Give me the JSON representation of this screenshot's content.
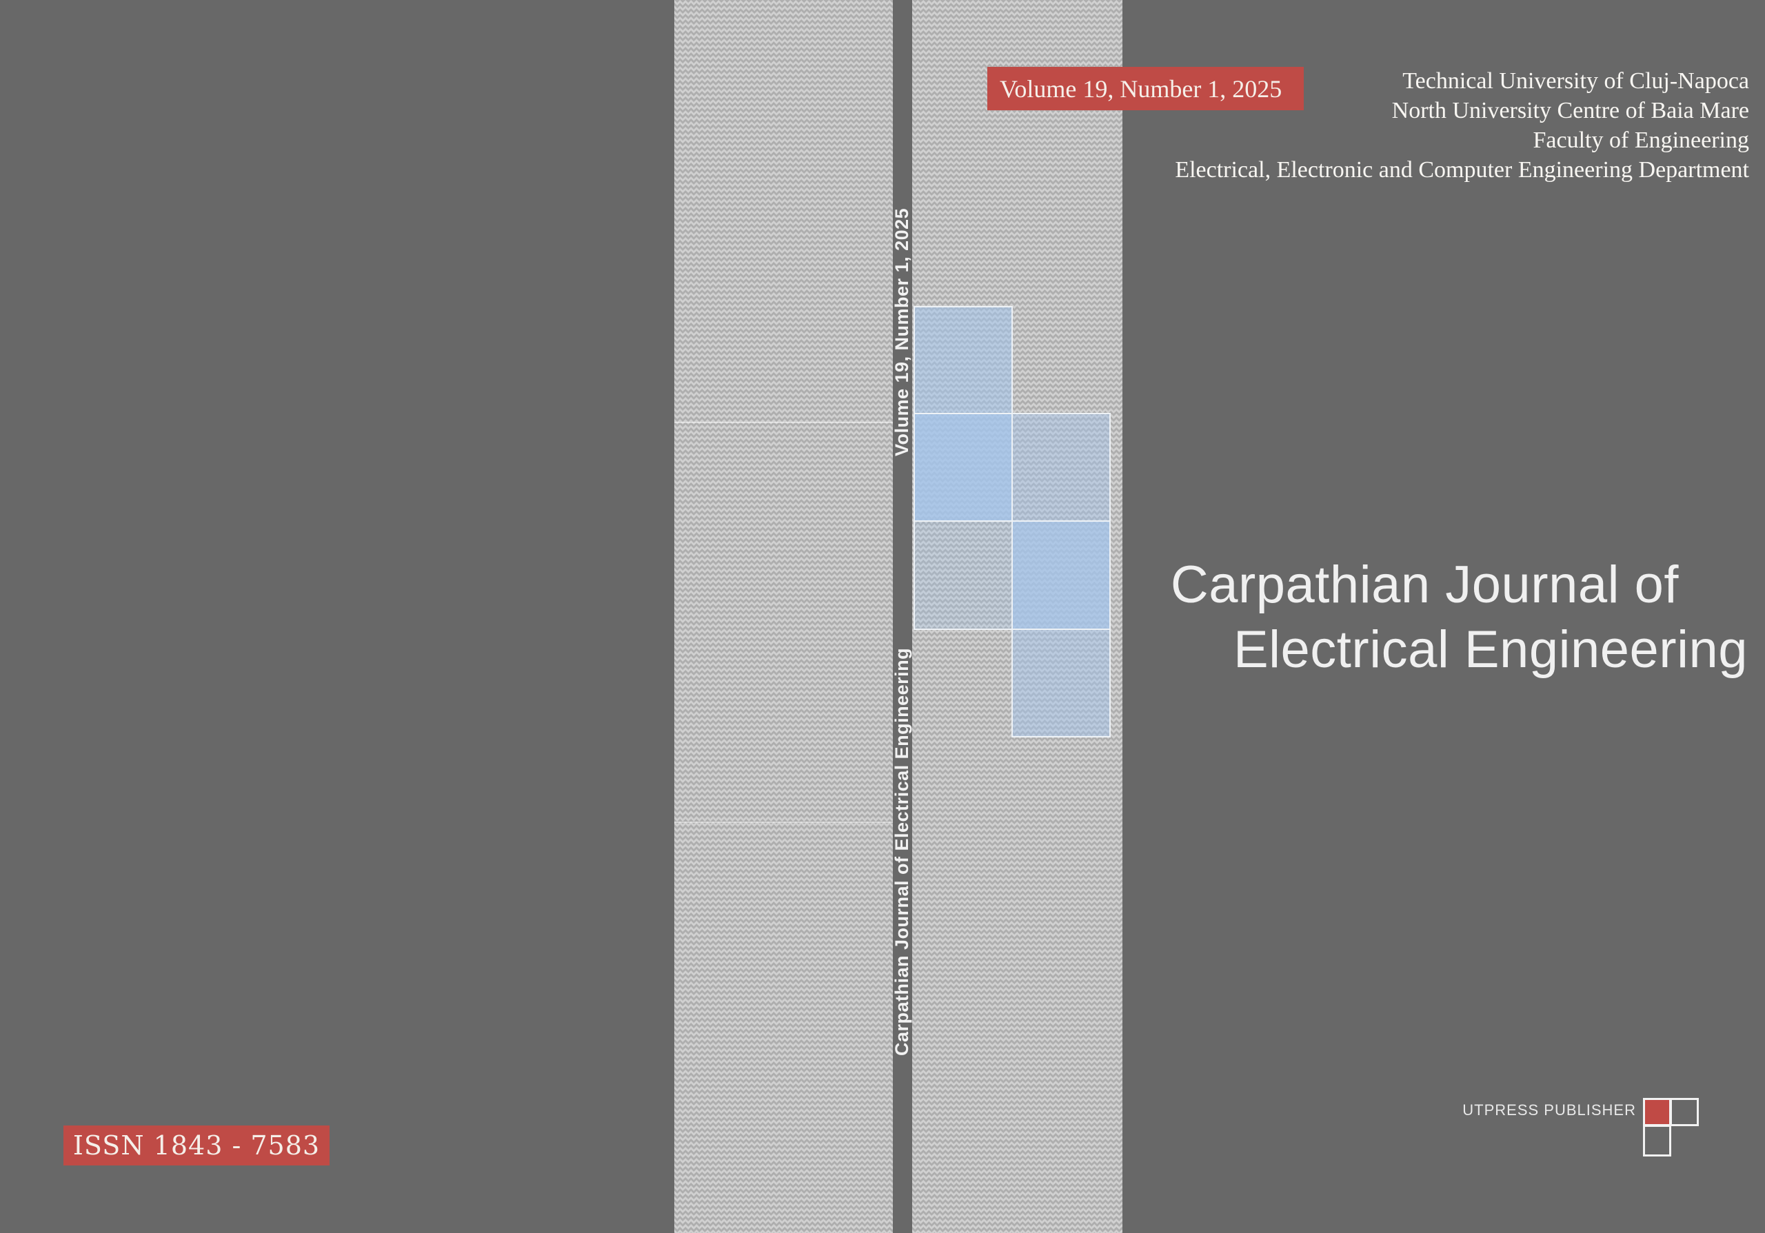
{
  "cover": {
    "volume_badge": "Volume 19, Number 1, 2025",
    "affiliation": {
      "line1": "Technical University of Cluj-Napoca",
      "line2": "North University Centre of Baia Mare",
      "line3": "Faculty of Engineering",
      "line4": "Electrical, Electronic and Computer Engineering Department"
    },
    "title": {
      "line1": "Carpathian Journal of",
      "line2": "Electrical Engineering"
    },
    "spine": {
      "top_text": "Volume 19, Number 1, 2025",
      "bottom_text": "Carpathian Journal of Electrical Engineering"
    },
    "issn_badge": "ISSN 1843 - 7583",
    "publisher": {
      "label": "UTPRESS PUBLISHER"
    },
    "colors": {
      "accent_red": "#bf4b46",
      "background_gray": "#686868",
      "texture_gray": "#c6c6c6",
      "mosaic_blue": "#a3c4ec",
      "text_white": "#f2f2f2"
    }
  }
}
